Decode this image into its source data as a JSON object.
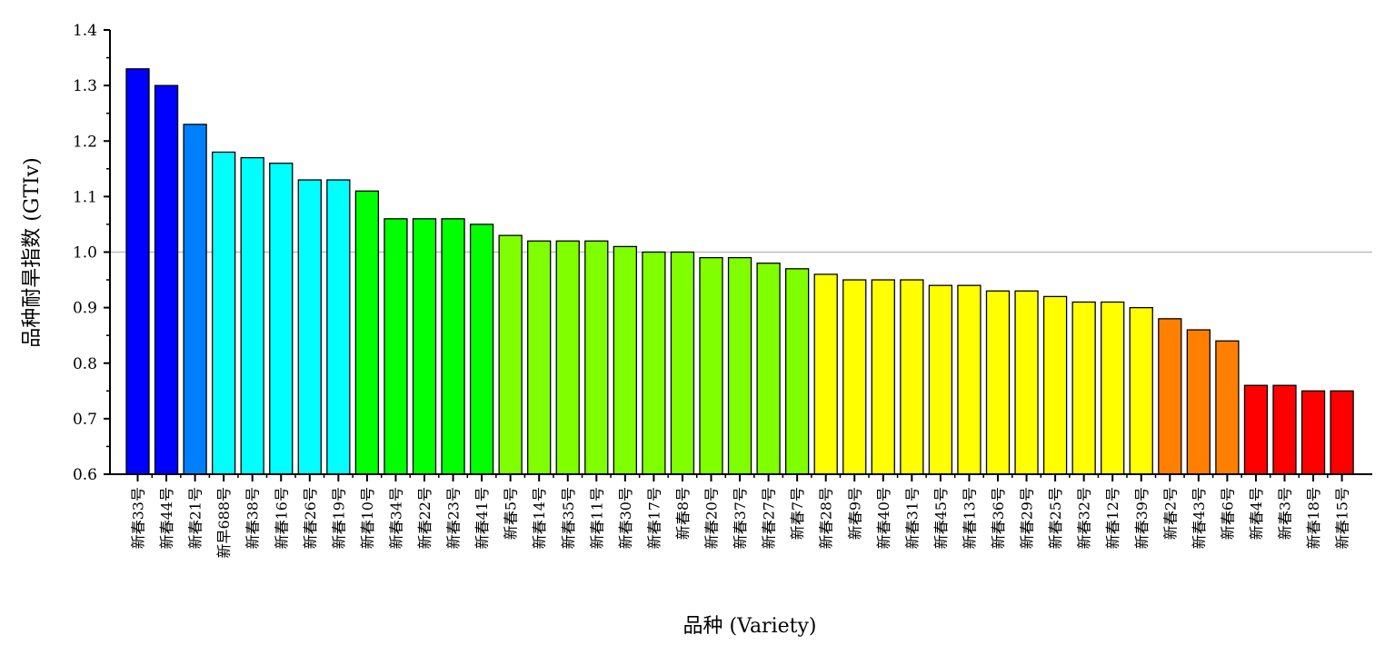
{
  "chart_data": {
    "type": "bar",
    "xlabel": "品种 (Variety)",
    "ylabel": "品种耐旱指数 (GTIv)",
    "ylim": [
      0.6,
      1.4
    ],
    "yticks": [
      "0.6",
      "0.7",
      "0.8",
      "0.9",
      "1.0",
      "1.1",
      "1.2",
      "1.3",
      "1.4"
    ],
    "reference_line": 1.0,
    "grid": false,
    "categories": [
      "新春33号",
      "新春44号",
      "新春21号",
      "新早688号",
      "新春38号",
      "新春16号",
      "新春26号",
      "新春19号",
      "新春10号",
      "新春34号",
      "新春22号",
      "新春23号",
      "新春41号",
      "新春5号",
      "新春14号",
      "新春35号",
      "新春11号",
      "新春30号",
      "新春17号",
      "新春8号",
      "新春20号",
      "新春37号",
      "新春27号",
      "新春7号",
      "新春28号",
      "新春9号",
      "新春40号",
      "新春31号",
      "新春45号",
      "新春13号",
      "新春36号",
      "新春29号",
      "新春25号",
      "新春32号",
      "新春12号",
      "新春39号",
      "新春2号",
      "新春43号",
      "新春6号",
      "新春4号",
      "新春3号",
      "新春18号",
      "新春15号"
    ],
    "values": [
      1.33,
      1.3,
      1.23,
      1.18,
      1.17,
      1.16,
      1.13,
      1.13,
      1.11,
      1.06,
      1.06,
      1.06,
      1.05,
      1.03,
      1.02,
      1.02,
      1.02,
      1.01,
      1.0,
      1.0,
      0.99,
      0.99,
      0.98,
      0.97,
      0.96,
      0.95,
      0.95,
      0.95,
      0.94,
      0.94,
      0.93,
      0.93,
      0.92,
      0.91,
      0.91,
      0.9,
      0.88,
      0.86,
      0.84,
      0.76,
      0.76,
      0.75,
      0.75
    ],
    "colors": [
      "#0000ff",
      "#0000ff",
      "#0080ff",
      "#00ffff",
      "#00ffff",
      "#00ffff",
      "#00ffff",
      "#00ffff",
      "#00ff00",
      "#00ff00",
      "#00ff00",
      "#00ff00",
      "#00ff00",
      "#80ff00",
      "#80ff00",
      "#80ff00",
      "#80ff00",
      "#80ff00",
      "#80ff00",
      "#80ff00",
      "#80ff00",
      "#80ff00",
      "#80ff00",
      "#80ff00",
      "#ffff00",
      "#ffff00",
      "#ffff00",
      "#ffff00",
      "#ffff00",
      "#ffff00",
      "#ffff00",
      "#ffff00",
      "#ffff00",
      "#ffff00",
      "#ffff00",
      "#ffff00",
      "#ff8000",
      "#ff8000",
      "#ff8000",
      "#ff0000",
      "#ff0000",
      "#ff0000",
      "#ff0000"
    ]
  }
}
